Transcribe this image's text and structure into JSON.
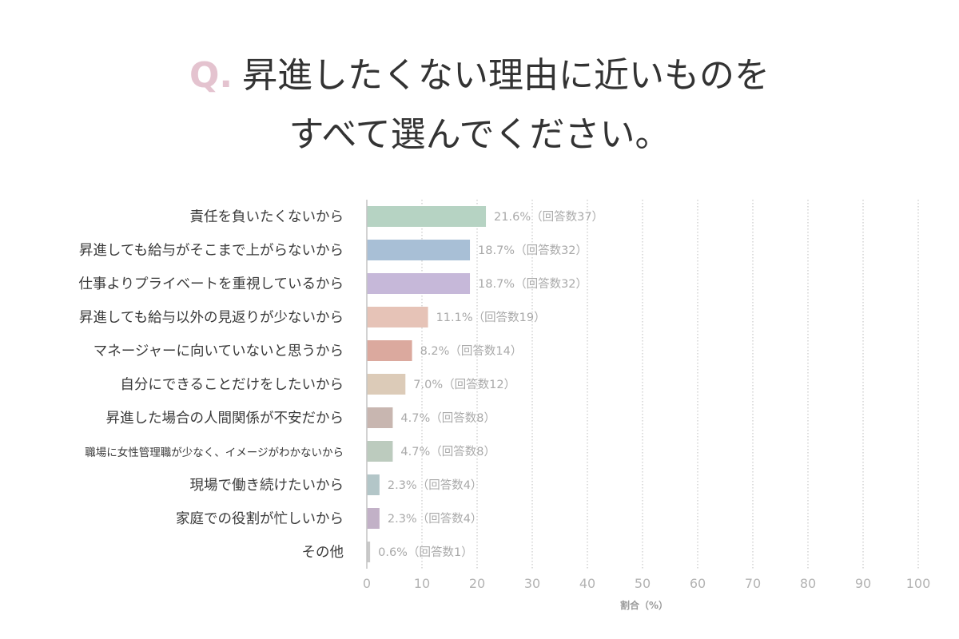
{
  "title": {
    "marker": "Q.",
    "line1": "昇進したくない理由に近いものを",
    "line2": "すべて選んでください。"
  },
  "chart_data": {
    "type": "bar",
    "orientation": "horizontal",
    "categories": [
      "責任を負いたくないから",
      "昇進しても給与がそこまで上がらないから",
      "仕事よりプライベートを重視しているから",
      "昇進しても給与以外の見返りが少ないから",
      "マネージャーに向いていないと思うから",
      "自分にできることだけをしたいから",
      "昇進した場合の人間関係が不安だから",
      "職場に女性管理職が少なく、イメージがわかないから",
      "現場で働き続けたいから",
      "家庭での役割が忙しいから",
      "その他"
    ],
    "values": [
      21.6,
      18.7,
      18.7,
      11.1,
      8.2,
      7.0,
      4.7,
      4.7,
      2.3,
      2.3,
      0.6
    ],
    "data_labels": [
      "21.6%（回答数37）",
      "18.7%（回答数32）",
      "18.7%（回答数32）",
      "11.1%（回答数19）",
      "8.2%（回答数14）",
      "7.0%（回答数12）",
      "4.7%（回答数8）",
      "4.7%（回答数8）",
      "2.3%（回答数4）",
      "2.3%（回答数4）",
      "0.6%（回答数1）"
    ],
    "colors": [
      "#b6d3c3",
      "#a8bfd6",
      "#c6b8d9",
      "#e6c3b7",
      "#dba99e",
      "#dccbb8",
      "#c8b6b0",
      "#bccbbe",
      "#b3c6c8",
      "#c2b1c7",
      "#c9c9c9"
    ],
    "xlabel": "割合（%）",
    "xlim": [
      0,
      100
    ],
    "xticks": [
      0,
      10,
      20,
      30,
      40,
      50,
      60,
      70,
      80,
      90,
      100
    ],
    "grid": "vertical-dotted"
  }
}
